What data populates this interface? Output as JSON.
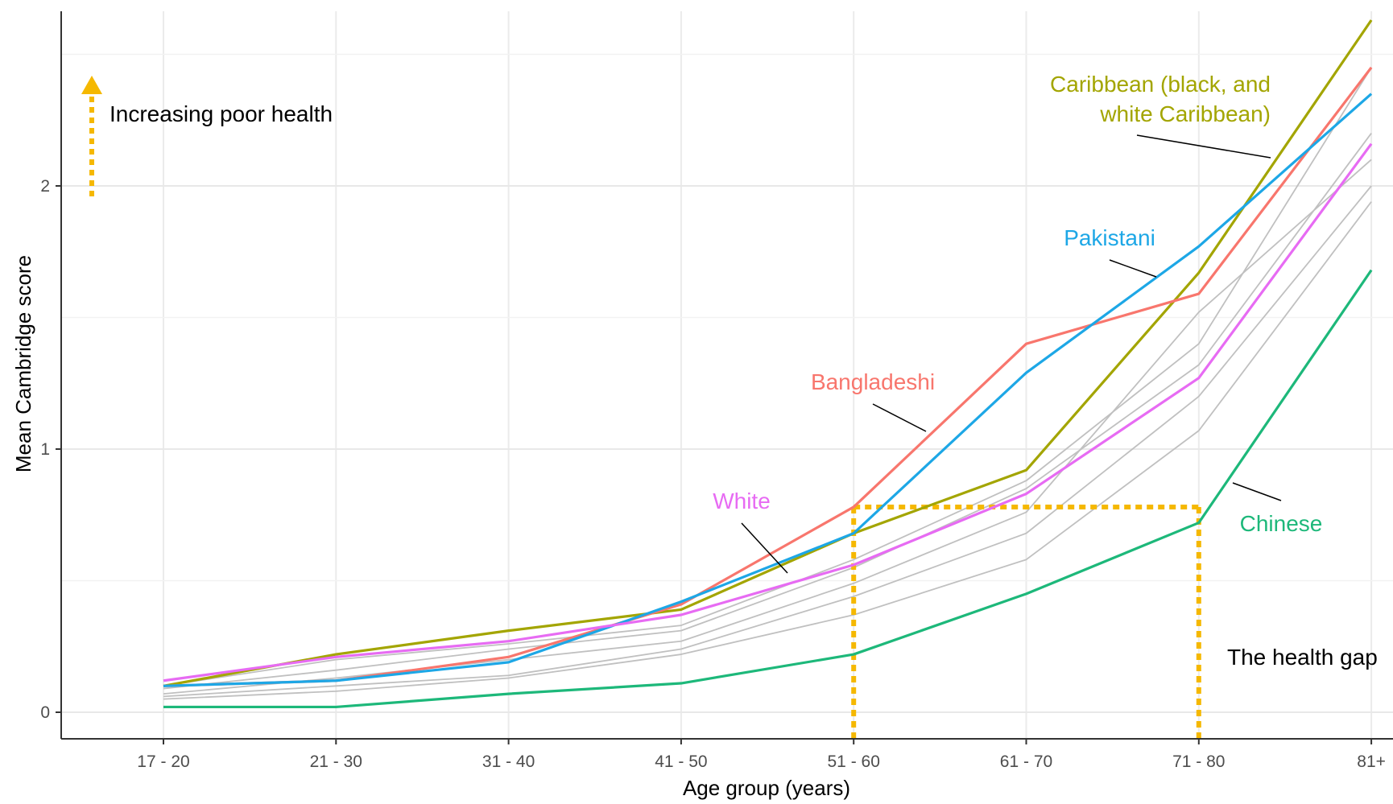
{
  "chart_data": {
    "type": "line",
    "xlabel": "Age group (years)",
    "ylabel": "Mean Cambridge score",
    "categories": [
      "17 - 20",
      "21 - 30",
      "31 - 40",
      "41 - 50",
      "51 - 60",
      "61 - 70",
      "71 - 80",
      "81+"
    ],
    "ylim": [
      -0.1,
      2.6
    ],
    "yticks": [
      "0",
      "1",
      "2"
    ],
    "grid": true,
    "series": [
      {
        "name": "Caribbean (black, and white Caribbean)",
        "color": "#a3a500",
        "highlight": true,
        "values": [
          0.1,
          0.22,
          0.31,
          0.39,
          0.68,
          0.92,
          1.67,
          2.63
        ]
      },
      {
        "name": "Bangladeshi",
        "color": "#f8766d",
        "highlight": true,
        "values": [
          0.1,
          0.12,
          0.21,
          0.41,
          0.78,
          1.4,
          1.59,
          2.45
        ]
      },
      {
        "name": "Pakistani",
        "color": "#1da7e6",
        "highlight": true,
        "values": [
          0.1,
          0.12,
          0.19,
          0.42,
          0.68,
          1.29,
          1.77,
          2.35
        ]
      },
      {
        "name": "White",
        "color": "#e76bf3",
        "highlight": true,
        "values": [
          0.12,
          0.21,
          0.27,
          0.37,
          0.56,
          0.83,
          1.27,
          2.16
        ]
      },
      {
        "name": "Chinese",
        "color": "#1db87a",
        "highlight": true,
        "values": [
          0.02,
          0.02,
          0.07,
          0.11,
          0.22,
          0.45,
          0.72,
          1.68
        ]
      },
      {
        "color": "#c0c0c0",
        "highlight": false,
        "values": [
          0.1,
          0.2,
          0.26,
          0.33,
          0.58,
          0.88,
          1.4,
          2.45
        ]
      },
      {
        "color": "#c0c0c0",
        "highlight": false,
        "values": [
          0.09,
          0.16,
          0.24,
          0.31,
          0.55,
          0.85,
          1.32,
          2.2
        ]
      },
      {
        "color": "#c0c0c0",
        "highlight": false,
        "values": [
          0.07,
          0.13,
          0.2,
          0.27,
          0.49,
          0.76,
          1.52,
          2.1
        ]
      },
      {
        "color": "#c0c0c0",
        "highlight": false,
        "values": [
          0.06,
          0.1,
          0.14,
          0.24,
          0.44,
          0.68,
          1.2,
          2.0
        ]
      },
      {
        "color": "#c0c0c0",
        "highlight": false,
        "values": [
          0.05,
          0.08,
          0.13,
          0.22,
          0.37,
          0.58,
          1.07,
          1.94
        ]
      }
    ],
    "annotations": {
      "increasing": "Increasing poor health",
      "caribbean_line1": "Caribbean (black, and",
      "caribbean_line2": "white Caribbean)",
      "pakistani": "Pakistani",
      "bangladeshi": "Bangladeshi",
      "white": "White",
      "chinese": "Chinese",
      "health_gap": "The health gap",
      "gap_color": "#f5b800"
    }
  }
}
